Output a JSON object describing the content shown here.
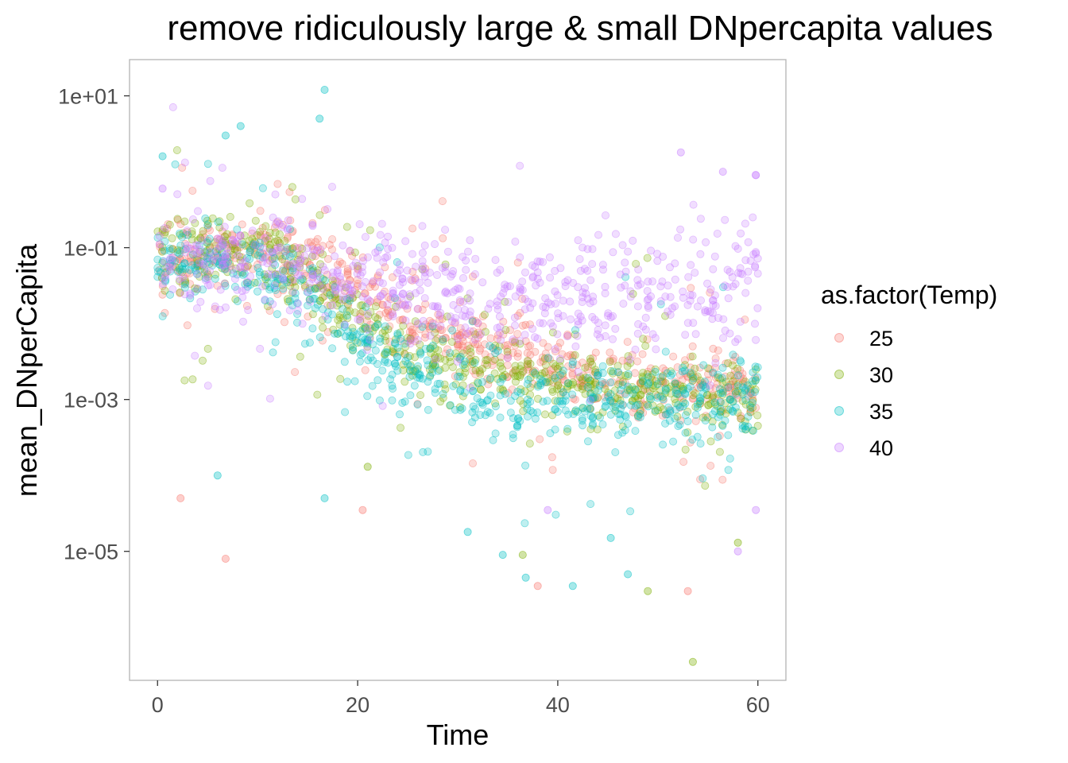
{
  "chart_data": {
    "type": "scatter",
    "title": "remove ridiculously large & small DNpercapita values",
    "xlabel": "Time",
    "ylabel": "mean_DNperCapita",
    "x_scale": "linear",
    "y_scale": "log10",
    "xlim": [
      -2.8,
      62.8
    ],
    "ylim": [
      2e-07,
      30
    ],
    "x_ticks": [
      0,
      20,
      40,
      60
    ],
    "x_tick_labels": [
      "0",
      "20",
      "40",
      "60"
    ],
    "y_ticks": [
      10,
      0.1,
      0.001,
      1e-05
    ],
    "y_tick_labels": [
      "1e+01",
      "1e-01",
      "1e-03",
      "1e-05"
    ],
    "grid": false,
    "point_alpha": 0.25,
    "legend": {
      "title": "as.factor(Temp)",
      "position": "right",
      "entries": [
        "25",
        "30",
        "35",
        "40"
      ]
    },
    "series": [
      {
        "name": "25",
        "color": "#F8766D",
        "trend_points": [
          [
            0,
            0.08
          ],
          [
            5,
            0.09
          ],
          [
            10,
            0.1
          ],
          [
            15,
            0.08
          ],
          [
            20,
            0.03
          ],
          [
            25,
            0.012
          ],
          [
            30,
            0.006
          ],
          [
            35,
            0.004
          ],
          [
            40,
            0.0025
          ],
          [
            45,
            0.002
          ],
          [
            50,
            0.0017
          ],
          [
            55,
            0.0015
          ],
          [
            60,
            0.0014
          ]
        ],
        "notable_points": [
          [
            6.8,
            8e-06
          ],
          [
            2.3,
            5e-05
          ],
          [
            53,
            3e-06
          ],
          [
            38,
            3.5e-06
          ],
          [
            20.5,
            3.5e-05
          ]
        ]
      },
      {
        "name": "30",
        "color": "#7CAE00",
        "trend_points": [
          [
            0,
            0.07
          ],
          [
            5,
            0.08
          ],
          [
            10,
            0.09
          ],
          [
            15,
            0.04
          ],
          [
            20,
            0.01
          ],
          [
            25,
            0.005
          ],
          [
            30,
            0.003
          ],
          [
            35,
            0.0022
          ],
          [
            40,
            0.0018
          ],
          [
            45,
            0.0015
          ],
          [
            50,
            0.0013
          ],
          [
            55,
            0.0012
          ],
          [
            60,
            0.0011
          ]
        ],
        "notable_points": [
          [
            53.5,
            3.5e-07
          ],
          [
            49,
            3e-06
          ],
          [
            58,
            1.3e-05
          ],
          [
            36.5,
            9e-06
          ],
          [
            21,
            0.00013
          ]
        ]
      },
      {
        "name": "35",
        "color": "#00BFC4",
        "trend_points": [
          [
            0,
            0.07
          ],
          [
            5,
            0.08
          ],
          [
            10,
            0.07
          ],
          [
            15,
            0.02
          ],
          [
            20,
            0.006
          ],
          [
            25,
            0.003
          ],
          [
            30,
            0.0015
          ],
          [
            35,
            0.0009
          ],
          [
            40,
            0.0008
          ],
          [
            45,
            0.0009
          ],
          [
            50,
            0.001
          ],
          [
            55,
            0.0011
          ],
          [
            60,
            0.0012
          ]
        ],
        "notable_points": [
          [
            16.7,
            12
          ],
          [
            16.2,
            5
          ],
          [
            8.3,
            4
          ],
          [
            6.8,
            3
          ],
          [
            0.5,
            1.6
          ],
          [
            31,
            1.8e-05
          ],
          [
            34.5,
            9e-06
          ],
          [
            36.8,
            4.5e-06
          ],
          [
            41.5,
            3.5e-06
          ],
          [
            45.3,
            1.5e-05
          ],
          [
            47,
            5e-06
          ],
          [
            16.7,
            5e-05
          ],
          [
            6,
            0.0001
          ]
        ]
      },
      {
        "name": "40",
        "color": "#C77CFF",
        "trend_points": [
          [
            0,
            0.06
          ],
          [
            5,
            0.07
          ],
          [
            10,
            0.07
          ],
          [
            15,
            0.05
          ],
          [
            20,
            0.04
          ],
          [
            25,
            0.03
          ],
          [
            30,
            0.025
          ],
          [
            35,
            0.02
          ],
          [
            40,
            0.02
          ],
          [
            45,
            0.02
          ],
          [
            50,
            0.025
          ],
          [
            55,
            0.03
          ],
          [
            60,
            0.03
          ]
        ],
        "notable_points": [
          [
            52.3,
            1.8
          ],
          [
            56.5,
            1
          ],
          [
            59.8,
            0.9
          ],
          [
            58,
            1e-05
          ],
          [
            59.8,
            3.5e-05
          ],
          [
            39,
            3.5e-05
          ],
          [
            0.5,
            0.6
          ]
        ]
      }
    ]
  }
}
